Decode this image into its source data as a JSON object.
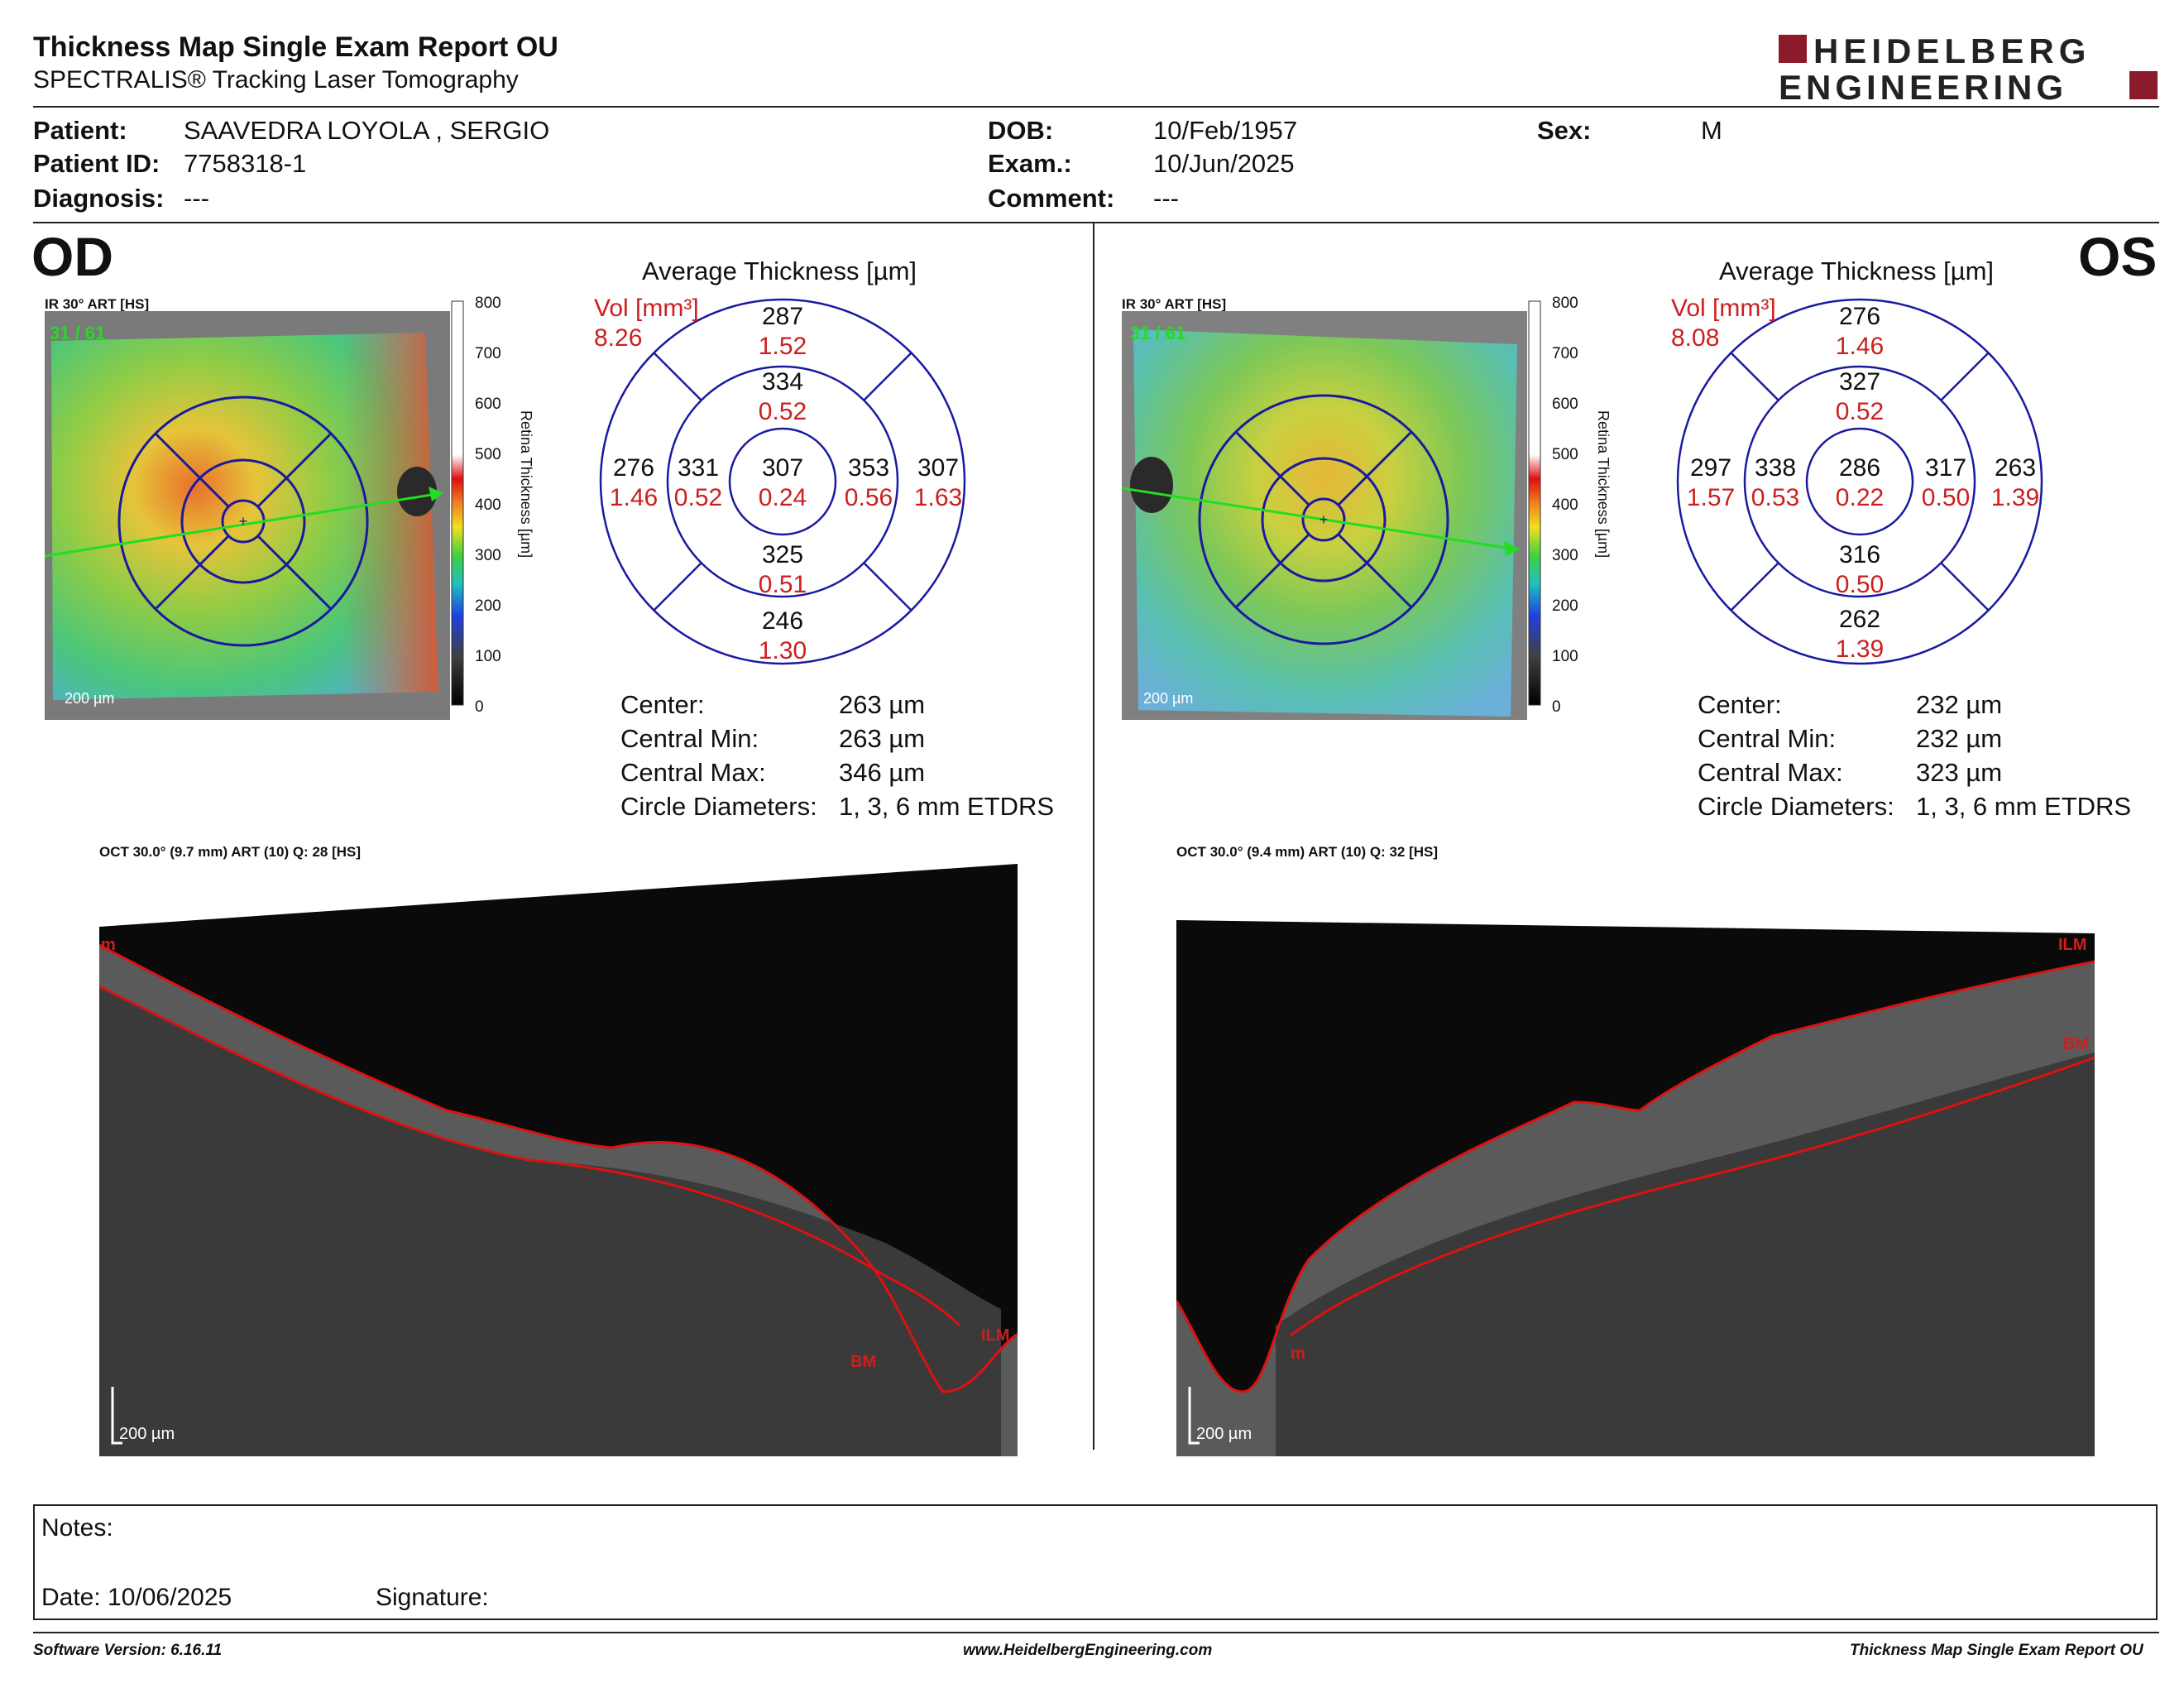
{
  "header": {
    "title": "Thickness Map Single Exam Report OU",
    "subtitle": "SPECTRALIS® Tracking Laser Tomography",
    "logo_line1": "HEIDELBERG",
    "logo_line2": "ENGINEERING"
  },
  "patient": {
    "patient_label": "Patient:",
    "patient_value": "SAAVEDRA LOYOLA , SERGIO",
    "id_label": "Patient ID:",
    "id_value": "7758318-1",
    "diagnosis_label": "Diagnosis:",
    "diagnosis_value": "---",
    "dob_label": "DOB:",
    "dob_value": "10/Feb/1957",
    "exam_label": "Exam.:",
    "exam_value": "10/Jun/2025",
    "comment_label": "Comment:",
    "comment_value": "---",
    "sex_label": "Sex:",
    "sex_value": "M"
  },
  "colors": {
    "accent_red": "#cc1f1f",
    "grid_blue": "#1a1aa0",
    "logo_red": "#8b1a2a",
    "seg_red": "#e01010"
  },
  "od": {
    "eye_label": "OD",
    "ir_header": "IR 30° ART [HS]",
    "ir_counter": "31 / 61",
    "scale_label": "200 µm",
    "colorbar_ticks": [
      "800",
      "700",
      "600",
      "500",
      "400",
      "300",
      "200",
      "100",
      "0"
    ],
    "colorbar_title": "Retina  Thickness [µm]",
    "avg_title": "Average Thickness [µm]",
    "vol_label": "Vol [mm³]",
    "vol_total": "8.26",
    "sectors": {
      "center": {
        "t": "307",
        "v": "0.24"
      },
      "inner_sup": {
        "t": "334",
        "v": "0.52"
      },
      "inner_inf": {
        "t": "325",
        "v": "0.51"
      },
      "inner_left": {
        "t": "331",
        "v": "0.52"
      },
      "inner_right": {
        "t": "353",
        "v": "0.56"
      },
      "outer_sup": {
        "t": "287",
        "v": "1.52"
      },
      "outer_inf": {
        "t": "246",
        "v": "1.30"
      },
      "outer_left": {
        "t": "276",
        "v": "1.46"
      },
      "outer_right": {
        "t": "307",
        "v": "1.63"
      }
    },
    "stats": [
      {
        "label": "Center:",
        "value": "263 µm"
      },
      {
        "label": "Central Min:",
        "value": "263 µm"
      },
      {
        "label": "Central Max:",
        "value": "346 µm"
      },
      {
        "label": "Circle Diameters:",
        "value": "1, 3, 6 mm ETDRS"
      }
    ],
    "oct_header": "OCT 30.0° (9.7 mm) ART (10) Q: 28 [HS]",
    "oct_labels": {
      "top": "m",
      "bm": "BM",
      "ilm": "ILM"
    },
    "oct_scale": "200 µm"
  },
  "os": {
    "eye_label": "OS",
    "ir_header": "IR 30° ART [HS]",
    "ir_counter": "31 / 61",
    "scale_label": "200 µm",
    "colorbar_ticks": [
      "800",
      "700",
      "600",
      "500",
      "400",
      "300",
      "200",
      "100",
      "0"
    ],
    "colorbar_title": "Retina  Thickness [µm]",
    "avg_title": "Average Thickness [µm]",
    "vol_label": "Vol [mm³]",
    "vol_total": "8.08",
    "sectors": {
      "center": {
        "t": "286",
        "v": "0.22"
      },
      "inner_sup": {
        "t": "327",
        "v": "0.52"
      },
      "inner_inf": {
        "t": "316",
        "v": "0.50"
      },
      "inner_left": {
        "t": "338",
        "v": "0.53"
      },
      "inner_right": {
        "t": "317",
        "v": "0.50"
      },
      "outer_sup": {
        "t": "276",
        "v": "1.46"
      },
      "outer_inf": {
        "t": "262",
        "v": "1.39"
      },
      "outer_left": {
        "t": "297",
        "v": "1.57"
      },
      "outer_right": {
        "t": "263",
        "v": "1.39"
      }
    },
    "stats": [
      {
        "label": "Center:",
        "value": "232 µm"
      },
      {
        "label": "Central Min:",
        "value": "232 µm"
      },
      {
        "label": "Central Max:",
        "value": "323 µm"
      },
      {
        "label": "Circle Diameters:",
        "value": "1, 3, 6 mm ETDRS"
      }
    ],
    "oct_header": "OCT 30.0° (9.4 mm) ART (10) Q: 32 [HS]",
    "oct_labels": {
      "ilm": "ILM",
      "bm": "BM",
      "bottom": "m"
    },
    "oct_scale": "200 µm"
  },
  "notes": {
    "notes_label": "Notes:",
    "date_label": "Date: 10/06/2025",
    "signature_label": "Signature:"
  },
  "footer": {
    "software": "Software Version: 6.16.11",
    "website": "www.HeidelbergEngineering.com",
    "report": "Thickness Map Single Exam Report OU"
  }
}
